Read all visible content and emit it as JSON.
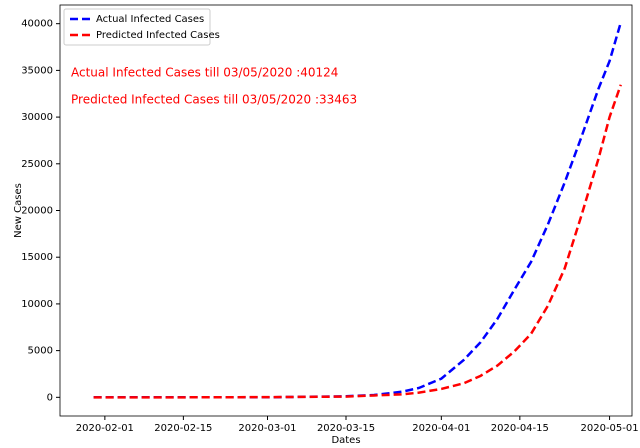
{
  "chart_data": {
    "type": "line",
    "x_label": "Dates",
    "y_label": "New Cases",
    "x": [
      "2020-01-30",
      "2020-02-15",
      "2020-03-01",
      "2020-03-15",
      "2020-03-20",
      "2020-03-25",
      "2020-03-28",
      "2020-04-01",
      "2020-04-05",
      "2020-04-08",
      "2020-04-11",
      "2020-04-14",
      "2020-04-17",
      "2020-04-20",
      "2020-04-23",
      "2020-04-26",
      "2020-04-29",
      "2020-05-01",
      "2020-05-03"
    ],
    "series": [
      {
        "name": "Actual Infected Cases",
        "color": "#0000ff",
        "values": [
          1,
          3,
          3,
          110,
          250,
          600,
          1000,
          2000,
          4000,
          5900,
          8400,
          11500,
          14500,
          18500,
          23000,
          27900,
          33000,
          36000,
          40124
        ]
      },
      {
        "name": "Predicted Infected Cases",
        "color": "#ff0000",
        "values": [
          0,
          0,
          20,
          80,
          200,
          320,
          500,
          900,
          1500,
          2300,
          3400,
          4900,
          6800,
          9800,
          13800,
          19500,
          25500,
          30000,
          33463
        ]
      }
    ],
    "xlim": [
      "2020-01-24",
      "2020-05-05"
    ],
    "xticks": [
      "2020-02-01",
      "2020-02-15",
      "2020-03-01",
      "2020-03-15",
      "2020-04-01",
      "2020-04-15",
      "2020-05-01"
    ],
    "ylim": [
      -2000,
      42000
    ],
    "yticks": [
      0,
      5000,
      10000,
      15000,
      20000,
      25000,
      30000,
      35000,
      40000
    ],
    "grid": false,
    "legend": "upper left",
    "annotations": [
      {
        "text": "Actual Infected Cases till 03/05/2020 :40124",
        "color": "#ff0000"
      },
      {
        "text": "Predicted Infected Cases till 03/05/2020 :33463",
        "color": "#ff0000"
      }
    ]
  }
}
